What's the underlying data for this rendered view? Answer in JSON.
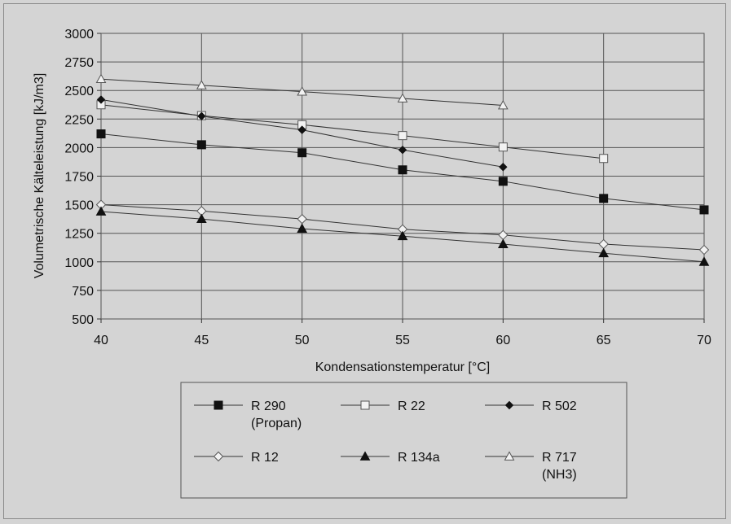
{
  "chart_data": {
    "type": "line",
    "title": "",
    "xlabel": "Kondensationstemperatur [°C]",
    "ylabel": "Volumetrische Kälteleistung [kJ/m3]",
    "xlim": [
      40,
      70
    ],
    "ylim": [
      500,
      3000
    ],
    "x_ticks": [
      40,
      45,
      50,
      55,
      60,
      65,
      70
    ],
    "y_ticks": [
      500,
      750,
      1000,
      1250,
      1500,
      1750,
      2000,
      2250,
      2500,
      2750,
      3000
    ],
    "grid": true,
    "legend_position": "bottom",
    "series": [
      {
        "name": "R 290",
        "name_line2": "(Propan)",
        "marker": "square-filled",
        "x": [
          40,
          45,
          50,
          55,
          60,
          65,
          70
        ],
        "values": [
          2120,
          2025,
          1955,
          1805,
          1705,
          1555,
          1455
        ]
      },
      {
        "name": "R 22",
        "marker": "square-open",
        "x": [
          40,
          45,
          50,
          55,
          60,
          65
        ],
        "values": [
          2375,
          2280,
          2200,
          2105,
          2005,
          1905
        ]
      },
      {
        "name": "R 502",
        "marker": "diamond-filled",
        "x": [
          40,
          45,
          50,
          55,
          60
        ],
        "values": [
          2420,
          2275,
          2155,
          1980,
          1830
        ]
      },
      {
        "name": "R 12",
        "marker": "diamond-open",
        "x": [
          40,
          45,
          50,
          55,
          60,
          65,
          70
        ],
        "values": [
          1500,
          1445,
          1375,
          1285,
          1235,
          1155,
          1105
        ]
      },
      {
        "name": "R 134a",
        "marker": "triangle-filled",
        "x": [
          40,
          45,
          50,
          55,
          60,
          65,
          70
        ],
        "values": [
          1440,
          1375,
          1290,
          1225,
          1155,
          1075,
          1000
        ]
      },
      {
        "name": "R 717",
        "name_line2": "(NH3)",
        "marker": "triangle-open",
        "x": [
          40,
          45,
          50,
          55,
          60
        ],
        "values": [
          2600,
          2545,
          2490,
          2430,
          2370
        ]
      }
    ]
  }
}
